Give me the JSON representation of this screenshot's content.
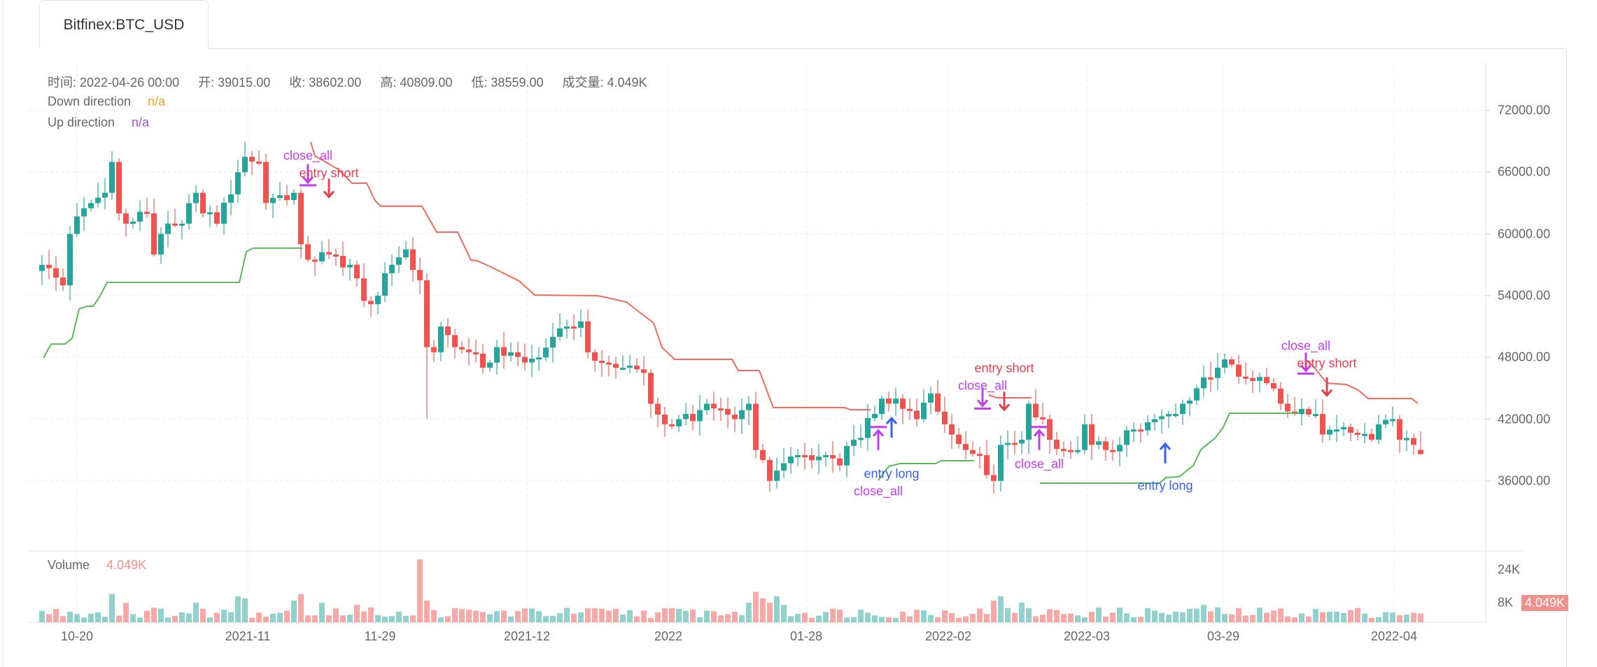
{
  "tab": {
    "label": "Bitfinex:BTC_USD"
  },
  "info": {
    "time": "时间: 2022-04-26 00:00",
    "open": "开: 39015.00",
    "close": "收: 38602.00",
    "high": "高: 40809.00",
    "low": "低: 38559.00",
    "volume": "成交量: 4.049K"
  },
  "legend": [
    {
      "label": "Down direction",
      "value": "n/a",
      "color": "#f0a030"
    },
    {
      "label": "Up direction",
      "value": "n/a",
      "color": "#9b59d0"
    }
  ],
  "volume_pane": {
    "label": "Volume",
    "value": "4.049K",
    "ticks": [
      "24K",
      "8K"
    ],
    "tag": "4.049K"
  },
  "colors": {
    "up": "#26a69a",
    "down": "#ef5350",
    "down_line": "#f26b60",
    "up_line": "#5cb85c",
    "close_all": "#c23cf0",
    "entry_short": "#e04050",
    "entry_long": "#3a5ef0"
  },
  "chart_data": {
    "type": "candlestick",
    "price_ticks": [
      "72000.00",
      "66000.00",
      "60000.00",
      "54000.00",
      "48000.00",
      "42000.00",
      "36000.00"
    ],
    "price_tick_values": [
      72000,
      66000,
      60000,
      54000,
      48000,
      42000,
      36000
    ],
    "x_ticks": [
      {
        "label": "10-20",
        "index": 5
      },
      {
        "label": "2021-11",
        "index": 29.4
      },
      {
        "label": "11-29",
        "index": 48.3
      },
      {
        "label": "2021-12",
        "index": 69.3
      },
      {
        "label": "2022",
        "index": 89.5
      },
      {
        "label": "01-28",
        "index": 109.2
      },
      {
        "label": "2022-02",
        "index": 129.5
      },
      {
        "label": "2022-03",
        "index": 149.3
      },
      {
        "label": "03-29",
        "index": 168.8
      },
      {
        "label": "2022-04",
        "index": 193.2
      }
    ],
    "candle_count": 198,
    "close_keypoints": [
      [
        0,
        57000
      ],
      [
        3,
        55000
      ],
      [
        4,
        60000
      ],
      [
        6,
        62500
      ],
      [
        7,
        63000
      ],
      [
        9,
        64000
      ],
      [
        10,
        67000
      ],
      [
        11,
        62000
      ],
      [
        12,
        61000
      ],
      [
        15,
        62000
      ],
      [
        16,
        58000
      ],
      [
        17,
        60000
      ],
      [
        20,
        61000
      ],
      [
        22,
        64000
      ],
      [
        23,
        62000
      ],
      [
        25,
        61000
      ],
      [
        28,
        66000
      ],
      [
        29,
        67500
      ],
      [
        31,
        67000
      ],
      [
        32,
        63000
      ],
      [
        33,
        63500
      ],
      [
        36,
        64000
      ],
      [
        37,
        59000
      ],
      [
        38,
        57500
      ],
      [
        41,
        58000
      ],
      [
        44,
        57000
      ],
      [
        46,
        53500
      ],
      [
        48,
        54000
      ],
      [
        50,
        57000
      ],
      [
        52,
        58500
      ],
      [
        53,
        56500
      ],
      [
        54,
        55500
      ],
      [
        55,
        49000
      ],
      [
        56,
        48500
      ],
      [
        57,
        51000
      ],
      [
        59,
        49000
      ],
      [
        61,
        48500
      ],
      [
        63,
        47000
      ],
      [
        65,
        49000
      ],
      [
        67,
        48500
      ],
      [
        69,
        47500
      ],
      [
        71,
        48000
      ],
      [
        73,
        50000
      ],
      [
        75,
        51000
      ],
      [
        77,
        51500
      ],
      [
        78,
        48500
      ],
      [
        80,
        47500
      ],
      [
        83,
        47000
      ],
      [
        86,
        46500
      ],
      [
        87,
        43500
      ],
      [
        89,
        41500
      ],
      [
        91,
        42000
      ],
      [
        93,
        41800
      ],
      [
        95,
        43500
      ],
      [
        97,
        43000
      ],
      [
        99,
        42000
      ],
      [
        101,
        43500
      ],
      [
        102,
        39000
      ],
      [
        104,
        36000
      ],
      [
        105,
        37000
      ],
      [
        108,
        38500
      ],
      [
        110,
        38000
      ],
      [
        112,
        38500
      ],
      [
        114,
        37500
      ],
      [
        116,
        40000
      ],
      [
        119,
        42500
      ],
      [
        120,
        44000
      ],
      [
        122,
        44000
      ],
      [
        123,
        43000
      ],
      [
        125,
        42000
      ],
      [
        127,
        44500
      ],
      [
        129,
        41500
      ],
      [
        130,
        40500
      ],
      [
        132,
        39000
      ],
      [
        134,
        38500
      ],
      [
        136,
        36000
      ],
      [
        137,
        39500
      ],
      [
        140,
        40000
      ],
      [
        141,
        43500
      ],
      [
        143,
        42000
      ],
      [
        144,
        40000
      ],
      [
        146,
        39000
      ],
      [
        148,
        39000
      ],
      [
        149,
        41500
      ],
      [
        150,
        39500
      ],
      [
        152,
        39000
      ],
      [
        154,
        39500
      ],
      [
        156,
        41000
      ],
      [
        159,
        42000
      ],
      [
        161,
        42500
      ],
      [
        163,
        43500
      ],
      [
        165,
        45000
      ],
      [
        167,
        46000
      ],
      [
        168,
        47000
      ],
      [
        170,
        47300
      ],
      [
        172,
        46000
      ],
      [
        175,
        45500
      ],
      [
        177,
        43500
      ],
      [
        179,
        42500
      ],
      [
        180,
        43000
      ],
      [
        182,
        42500
      ],
      [
        183,
        40500
      ],
      [
        185,
        41000
      ],
      [
        188,
        40500
      ],
      [
        190,
        40000
      ],
      [
        191,
        41500
      ],
      [
        193,
        42000
      ],
      [
        194,
        40000
      ],
      [
        196,
        39500
      ],
      [
        197,
        39015
      ]
    ],
    "last_candle": {
      "open": 39015,
      "close": 38602,
      "high": 40809,
      "low": 38559
    },
    "down_direction_segments": [
      [
        [
          38.4,
          68942
        ],
        [
          39,
          67583
        ],
        [
          42.3,
          66292
        ],
        [
          44.3,
          64933
        ],
        [
          46.4,
          64933
        ],
        [
          47.6,
          63234
        ],
        [
          48.4,
          62690
        ],
        [
          54.3,
          62690
        ],
        [
          56.4,
          60176
        ],
        [
          59.4,
          60176
        ],
        [
          61.3,
          57458
        ],
        [
          62.2,
          57390
        ],
        [
          64.2,
          56780
        ],
        [
          68.2,
          55420
        ],
        [
          70.4,
          54061
        ],
        [
          79.4,
          53993
        ],
        [
          80.4,
          53857
        ],
        [
          83.5,
          53382
        ],
        [
          87.4,
          51343
        ],
        [
          88.6,
          48965
        ],
        [
          90.4,
          47810
        ],
        [
          98.6,
          47810
        ],
        [
          99.5,
          46723
        ],
        [
          102.5,
          46723
        ],
        [
          104.5,
          43121
        ],
        [
          114.7,
          43121
        ],
        [
          115.5,
          42917
        ],
        [
          118.4,
          42917
        ]
      ],
      [
        [
          135.3,
          44344
        ],
        [
          136.5,
          44072
        ],
        [
          141.4,
          44072
        ]
      ],
      [
        [
          180.6,
          47742
        ],
        [
          181.6,
          47198
        ],
        [
          183.6,
          45500
        ],
        [
          186.4,
          45364
        ],
        [
          188.1,
          44820
        ],
        [
          189.5,
          44004
        ],
        [
          195.7,
          44004
        ],
        [
          196.6,
          43528
        ]
      ]
    ],
    "up_direction_segments": [
      [
        [
          0.2,
          47945
        ],
        [
          1.3,
          49300
        ],
        [
          3.3,
          49300
        ],
        [
          4.3,
          49850
        ],
        [
          5.3,
          52700
        ],
        [
          6.4,
          52970
        ],
        [
          7.3,
          52970
        ],
        [
          8.2,
          53860
        ],
        [
          9.3,
          55290
        ],
        [
          28.2,
          55290
        ],
        [
          29.2,
          58280
        ],
        [
          30.2,
          58620
        ],
        [
          37.2,
          58620
        ]
      ],
      [
        [
          119.5,
          36054
        ],
        [
          121,
          37413
        ],
        [
          122.6,
          37685
        ],
        [
          127.7,
          37685
        ],
        [
          128.5,
          37957
        ],
        [
          133.2,
          37957
        ]
      ],
      [
        [
          142.6,
          35783
        ],
        [
          159.7,
          35783
        ],
        [
          160.6,
          36330
        ],
        [
          162.5,
          36400
        ],
        [
          164.5,
          37480
        ],
        [
          165.6,
          39040
        ],
        [
          167.7,
          40200
        ],
        [
          168.8,
          41220
        ],
        [
          169.7,
          42580
        ],
        [
          179.7,
          42580
        ]
      ]
    ],
    "signals": [
      {
        "type": "close_all",
        "label": "close_all",
        "index": 38,
        "dir": "down",
        "price": 65000,
        "label_price": 67300
      },
      {
        "type": "entry_short",
        "label": "entry short",
        "index": 41,
        "dir": "down",
        "price": 63600,
        "label_price": 66200
      },
      {
        "type": "close_all",
        "label": "close_all",
        "index": 119.5,
        "dir": "up",
        "price": 40900,
        "label_price": 35200
      },
      {
        "type": "entry_long",
        "label": "entry long",
        "index": 121.4,
        "dir": "up",
        "price": 42100,
        "label_price": 36400
      },
      {
        "type": "close_all",
        "label": "close_all",
        "index": 134.4,
        "dir": "down",
        "price": 43300,
        "label_price": 45700
      },
      {
        "type": "entry_short",
        "label": "entry short",
        "index": 137.5,
        "dir": "down",
        "price": 42900,
        "label_price": 46500
      },
      {
        "type": "close_all",
        "label": "close_all",
        "index": 142.5,
        "dir": "up",
        "price": 40900,
        "label_price": 37600
      },
      {
        "type": "entry_long",
        "label": "entry long",
        "index": 160.5,
        "dir": "up",
        "price": 39600,
        "label_price": 35500
      },
      {
        "type": "close_all",
        "label": "close_all",
        "index": 180.6,
        "dir": "down",
        "price": 46700,
        "label_price": 49100
      },
      {
        "type": "entry_short",
        "label": "entry short",
        "index": 183.6,
        "dir": "down",
        "price": 44300,
        "label_price": 47400
      }
    ],
    "volume_spikes": [
      [
        10,
        13
      ],
      [
        12,
        9
      ],
      [
        22,
        9
      ],
      [
        28,
        12
      ],
      [
        29,
        11
      ],
      [
        36,
        10
      ],
      [
        37,
        13
      ],
      [
        40,
        9
      ],
      [
        45,
        8
      ],
      [
        54,
        29
      ],
      [
        55,
        10
      ],
      [
        101,
        9
      ],
      [
        102,
        14
      ],
      [
        103,
        11
      ],
      [
        104,
        9
      ],
      [
        105,
        12
      ],
      [
        106,
        8
      ],
      [
        136,
        10
      ],
      [
        137,
        12
      ],
      [
        140,
        9
      ],
      [
        166,
        8
      ],
      [
        197,
        4.049
      ]
    ],
    "volume_unit": "K"
  }
}
